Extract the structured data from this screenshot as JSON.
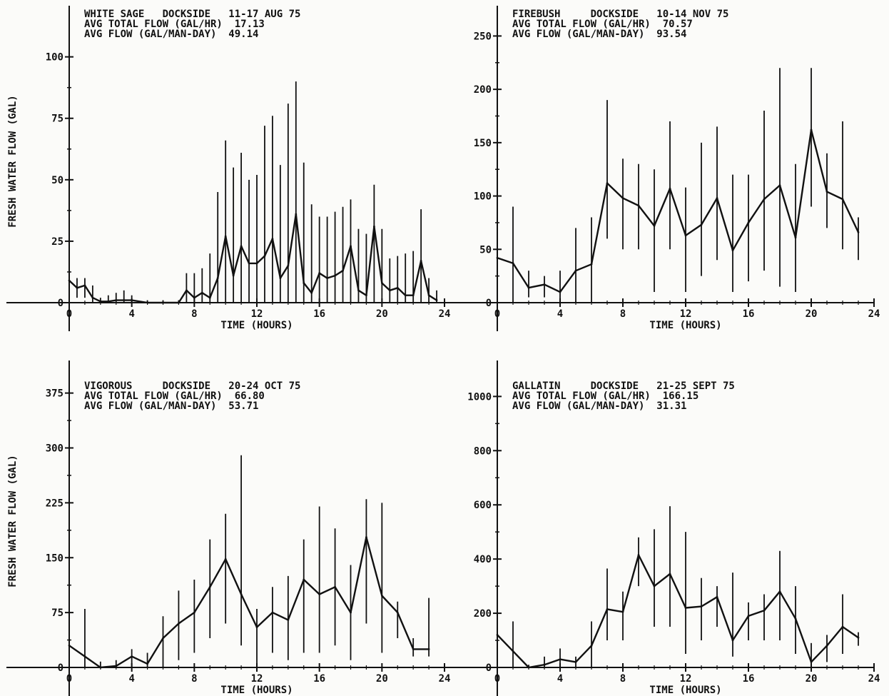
{
  "ylabel": "FRESH WATER FLOW (GAL)",
  "xlabel": "TIME (HOURS)",
  "chart_data": [
    {
      "type": "line",
      "header": [
        "WHITE SAGE   DOCKSIDE   11-17 AUG 75",
        "AVG TOTAL FLOW (GAL/HR)  17.13",
        "AVG FLOW (GAL/MAN-DAY)  49.14"
      ],
      "xlabel": "TIME (HOURS)",
      "ylabel": "FRESH WATER FLOW (GAL)",
      "xlim": [
        0,
        24
      ],
      "ylim": [
        0,
        115
      ],
      "xticks": [
        0,
        4,
        8,
        12,
        16,
        20,
        24
      ],
      "yticks": [
        0,
        25,
        50,
        75,
        100
      ],
      "ytick_labels": [
        "0",
        "25",
        "50",
        "75",
        "100"
      ],
      "x": [
        0,
        0.5,
        1,
        1.5,
        2,
        2.5,
        3,
        3.5,
        4,
        5,
        6,
        7,
        7.5,
        8,
        8.5,
        9,
        9.5,
        10,
        10.5,
        11,
        11.5,
        12,
        12.5,
        13,
        13.5,
        14,
        14.5,
        15,
        15.5,
        16,
        16.5,
        17,
        17.5,
        18,
        18.5,
        19,
        19.5,
        20,
        20.5,
        21,
        21.5,
        22,
        22.5,
        23,
        23.5
      ],
      "values": [
        9,
        6,
        7,
        2,
        0.5,
        0.5,
        1,
        1,
        1,
        0,
        0,
        0,
        5,
        2,
        4,
        2,
        10,
        27,
        11,
        23,
        16,
        16,
        19,
        26,
        10,
        15,
        36,
        8,
        4,
        12,
        10,
        11,
        13,
        23,
        5,
        3,
        31,
        8,
        5,
        6,
        3,
        3,
        17,
        3,
        1
      ],
      "err_low": [
        2,
        2,
        2,
        0,
        0,
        0,
        0,
        0,
        0,
        0,
        0,
        0,
        0,
        0,
        0,
        0,
        0,
        0,
        0,
        0,
        0,
        0,
        0,
        0,
        0,
        0,
        0,
        0,
        0,
        0,
        0,
        0,
        0,
        0,
        0,
        0,
        0,
        0,
        0,
        0,
        0,
        0,
        0,
        0,
        0
      ],
      "err_high": [
        10,
        10,
        10,
        7,
        2,
        3,
        4,
        5,
        3,
        1,
        1,
        1,
        12,
        12,
        14,
        20,
        45,
        66,
        55,
        61,
        50,
        52,
        72,
        76,
        56,
        81,
        90,
        57,
        40,
        35,
        35,
        37,
        39,
        42,
        30,
        28,
        48,
        30,
        18,
        19,
        20,
        21,
        38,
        10,
        5
      ]
    },
    {
      "type": "line",
      "header": [
        "FIREBUSH     DOCKSIDE   10-14 NOV 75",
        "AVG TOTAL FLOW (GAL/HR)  70.57",
        "AVG FLOW (GAL/MAN-DAY)  93.54"
      ],
      "xlabel": "TIME (HOURS)",
      "ylabel": "",
      "xlim": [
        0,
        24
      ],
      "ylim": [
        0,
        265
      ],
      "xticks": [
        0,
        4,
        8,
        12,
        16,
        20,
        24
      ],
      "yticks": [
        0,
        50,
        100,
        150,
        200,
        250
      ],
      "ytick_labels": [
        "0",
        "50",
        "100",
        "150",
        "200",
        "250"
      ],
      "x": [
        0,
        1,
        2,
        3,
        4,
        5,
        6,
        7,
        8,
        9,
        10,
        11,
        12,
        13,
        14,
        15,
        16,
        17,
        18,
        19,
        20,
        21,
        22,
        23
      ],
      "values": [
        42,
        37,
        14,
        17,
        10,
        30,
        36,
        112,
        98,
        91,
        72,
        107,
        63,
        73,
        98,
        49,
        75,
        97,
        110,
        61,
        162,
        104,
        97,
        66
      ],
      "err_low": [
        0,
        0,
        5,
        5,
        0,
        0,
        0,
        60,
        50,
        50,
        10,
        50,
        10,
        25,
        40,
        10,
        20,
        30,
        15,
        10,
        90,
        70,
        50,
        40
      ],
      "err_high": [
        80,
        90,
        30,
        25,
        30,
        70,
        80,
        190,
        135,
        130,
        125,
        170,
        108,
        150,
        165,
        120,
        120,
        180,
        220,
        130,
        220,
        140,
        170,
        80
      ]
    },
    {
      "type": "line",
      "header": [
        "VIGOROUS     DOCKSIDE   20-24 OCT 75",
        "AVG TOTAL FLOW (GAL/HR)  66.80",
        "AVG FLOW (GAL/MAN-DAY)  53.71"
      ],
      "xlabel": "TIME (HOURS)",
      "ylabel": "FRESH WATER FLOW (GAL)",
      "xlim": [
        0,
        24
      ],
      "ylim": [
        0,
        400
      ],
      "xticks": [
        0,
        4,
        8,
        12,
        16,
        20,
        24
      ],
      "yticks": [
        0,
        75,
        150,
        225,
        300,
        375
      ],
      "ytick_labels": [
        "0",
        "75",
        "150",
        "225",
        "300",
        "375"
      ],
      "x": [
        0,
        1,
        2,
        3,
        4,
        5,
        6,
        7,
        8,
        9,
        10,
        11,
        12,
        13,
        14,
        15,
        16,
        17,
        18,
        19,
        20,
        21,
        22,
        23
      ],
      "values": [
        30,
        15,
        0,
        2,
        15,
        5,
        40,
        60,
        75,
        110,
        148,
        100,
        55,
        75,
        65,
        120,
        100,
        110,
        75,
        178,
        98,
        75,
        25,
        25
      ],
      "err_low": [
        0,
        0,
        0,
        0,
        0,
        0,
        0,
        10,
        20,
        40,
        60,
        30,
        0,
        20,
        10,
        20,
        20,
        30,
        10,
        60,
        20,
        40,
        15,
        15
      ],
      "err_high": [
        75,
        80,
        8,
        10,
        25,
        20,
        70,
        105,
        120,
        175,
        210,
        290,
        80,
        110,
        125,
        175,
        220,
        190,
        140,
        230,
        225,
        90,
        40,
        95
      ]
    },
    {
      "type": "line",
      "header": [
        "GALLATIN     DOCKSIDE   21-25 SEPT 75",
        "AVG TOTAL FLOW (GAL/HR)  166.15",
        "AVG FLOW (GAL/MAN-DAY)  31.31"
      ],
      "xlabel": "TIME (HOURS)",
      "ylabel": "",
      "xlim": [
        0,
        24
      ],
      "ylim": [
        0,
        1080
      ],
      "xticks": [
        0,
        4,
        8,
        12,
        16,
        20,
        24
      ],
      "yticks": [
        0,
        200,
        400,
        600,
        800,
        1000
      ],
      "ytick_labels": [
        "0",
        "200",
        "400",
        "600",
        "800",
        "1000"
      ],
      "x": [
        0,
        1,
        2,
        3,
        4,
        5,
        6,
        7,
        8,
        9,
        10,
        11,
        12,
        13,
        14,
        15,
        16,
        17,
        18,
        19,
        20,
        21,
        22,
        23
      ],
      "values": [
        120,
        60,
        0,
        10,
        30,
        20,
        80,
        215,
        205,
        415,
        300,
        345,
        220,
        225,
        260,
        100,
        190,
        210,
        280,
        180,
        20,
        80,
        150,
        110
      ],
      "err_low": [
        0,
        0,
        0,
        0,
        0,
        0,
        0,
        100,
        100,
        300,
        150,
        150,
        50,
        100,
        150,
        40,
        100,
        100,
        100,
        50,
        0,
        20,
        50,
        80
      ],
      "err_high": [
        150,
        170,
        10,
        40,
        70,
        40,
        170,
        365,
        280,
        480,
        510,
        595,
        500,
        330,
        300,
        350,
        240,
        270,
        430,
        300,
        90,
        120,
        270,
        130
      ]
    }
  ]
}
